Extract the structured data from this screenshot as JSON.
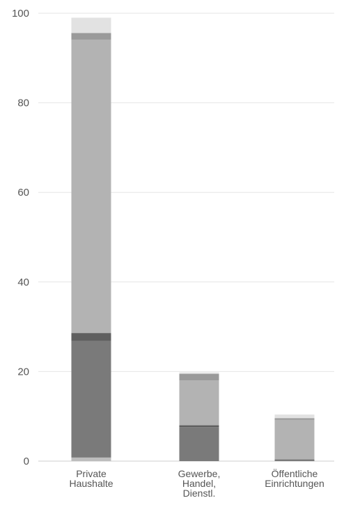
{
  "chart_data": {
    "type": "bar",
    "stacked": true,
    "categories": [
      [
        "Private",
        "Haushalte"
      ],
      [
        "Gewerbe,",
        "Handel,",
        "Dienstl."
      ],
      [
        "Öffentliche",
        "Einrichtungen"
      ]
    ],
    "series": [
      {
        "color": "#bdbdbd",
        "values": [
          0.8,
          0.0,
          0.0
        ]
      },
      {
        "color": "#7a7a7a",
        "values": [
          26.0,
          7.6,
          0.4
        ]
      },
      {
        "color": "#5f5f5f",
        "values": [
          1.8,
          0.4,
          0.0
        ]
      },
      {
        "color": "#b3b3b3",
        "values": [
          65.5,
          10.0,
          8.8
        ]
      },
      {
        "color": "#9a9a9a",
        "values": [
          1.5,
          1.5,
          0.4
        ]
      },
      {
        "color": "#e2e2e2",
        "values": [
          3.4,
          0.3,
          0.8
        ]
      }
    ],
    "ylim": [
      0,
      100
    ],
    "yticks": [
      0,
      20,
      40,
      60,
      80,
      100
    ],
    "grid": true,
    "title": "",
    "xlabel": "",
    "ylabel": ""
  }
}
